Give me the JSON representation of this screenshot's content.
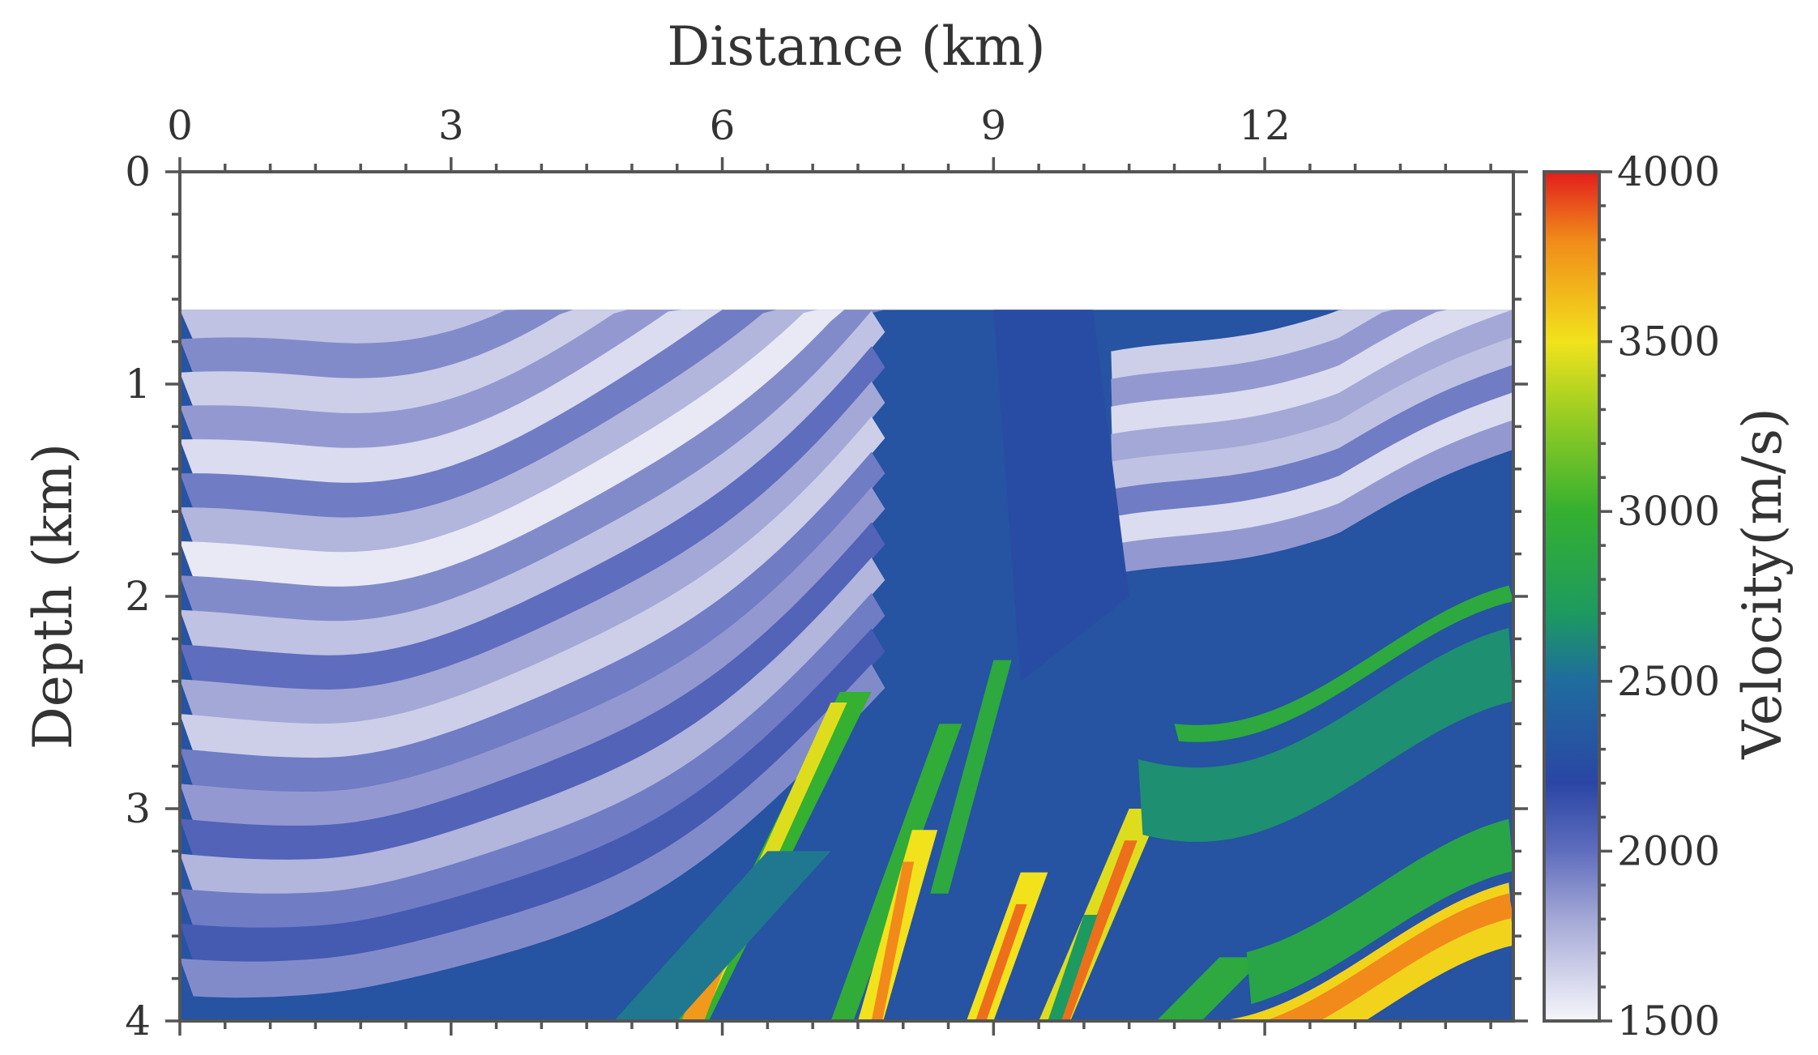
{
  "chart_data": {
    "type": "heatmap",
    "title": "",
    "xlabel": "Distance (km)",
    "ylabel": "Depth (km)",
    "colorbar_label": "Velocity(m/s)",
    "x_ticks": [
      0,
      3,
      6,
      9,
      12
    ],
    "x_ticks_label": [
      "0",
      "3",
      "6",
      "9",
      "12"
    ],
    "y_ticks": [
      0,
      1,
      2,
      3,
      4
    ],
    "y_ticks_label": [
      "0",
      "1",
      "2",
      "3",
      "4"
    ],
    "xlim": [
      0,
      14.75
    ],
    "ylim": [
      0,
      4
    ],
    "x_axis_position": "top",
    "colorbar_ticks": [
      1500,
      2000,
      2500,
      3000,
      3500,
      4000
    ],
    "colorbar_ticks_label": [
      "1500",
      "2000",
      "2500",
      "3000",
      "3500",
      "4000"
    ],
    "colorbar_range": [
      1500,
      4000
    ],
    "colormap": [
      {
        "v": 1500,
        "color": "#f6f6fb"
      },
      {
        "v": 1800,
        "color": "#a4a8d6"
      },
      {
        "v": 2000,
        "color": "#5f6dbe"
      },
      {
        "v": 2200,
        "color": "#2a46a4"
      },
      {
        "v": 2500,
        "color": "#1f6c9e"
      },
      {
        "v": 2700,
        "color": "#1d9a60"
      },
      {
        "v": 3000,
        "color": "#35b030"
      },
      {
        "v": 3300,
        "color": "#9fcf22"
      },
      {
        "v": 3500,
        "color": "#f2e21c"
      },
      {
        "v": 3800,
        "color": "#f18a1a"
      },
      {
        "v": 4000,
        "color": "#e21d1d"
      }
    ],
    "water_depth_km": 0.65,
    "grid": false
  }
}
